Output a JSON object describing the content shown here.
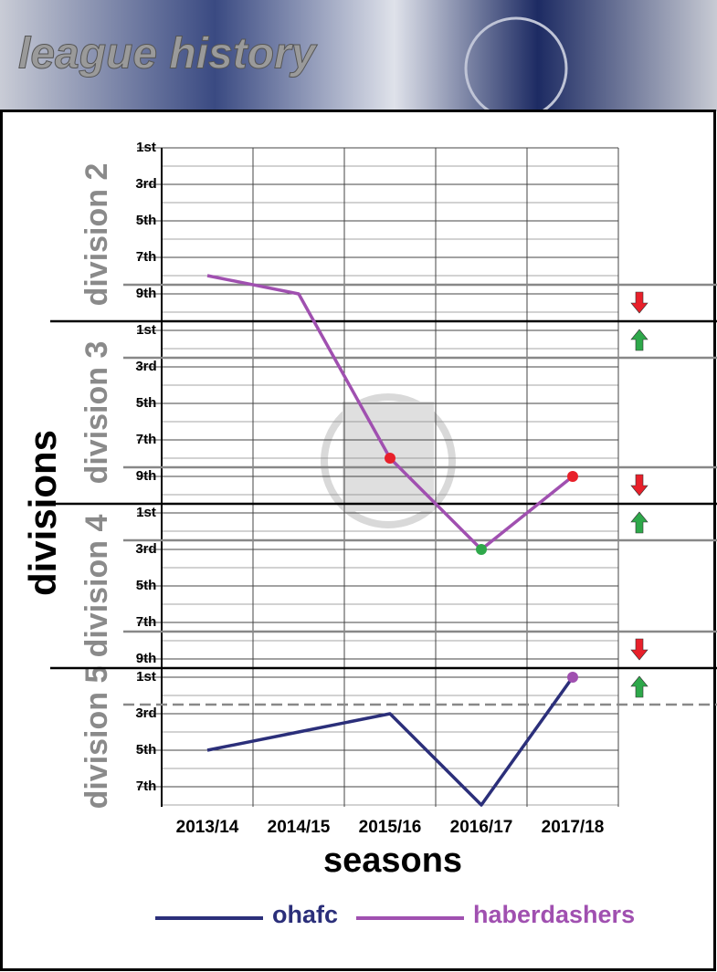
{
  "chart_data": {
    "type": "line",
    "title": "league history",
    "x_label": "seasons",
    "y_label": "divisions",
    "categories": [
      "2013/14",
      "2014/15",
      "2015/16",
      "2016/17",
      "2017/18"
    ],
    "series": [
      {
        "name": "ohafc",
        "color": "#2b2f7a",
        "values": [
          34,
          33,
          32,
          37,
          30
        ],
        "marker_colors": [
          null,
          null,
          null,
          null,
          "#a050b0"
        ]
      },
      {
        "name": "haberdashers",
        "color": "#a050b0",
        "values": [
          8,
          9,
          18,
          23,
          19
        ],
        "marker_colors": [
          null,
          null,
          "#e8202a",
          "#2ea84a",
          "#e8202a"
        ]
      }
    ],
    "ylim": [
      1,
      37.1
    ],
    "y_inverted": true,
    "yticks": [
      {
        "value": 1,
        "label": "1st"
      },
      {
        "value": 3,
        "label": "3rd"
      },
      {
        "value": 5,
        "label": "5th"
      },
      {
        "value": 7,
        "label": "7th"
      },
      {
        "value": 9,
        "label": "9th"
      },
      {
        "value": 11,
        "label": "1st"
      },
      {
        "value": 13,
        "label": "3rd"
      },
      {
        "value": 15,
        "label": "5th"
      },
      {
        "value": 17,
        "label": "7th"
      },
      {
        "value": 19,
        "label": "9th"
      },
      {
        "value": 21,
        "label": "1st"
      },
      {
        "value": 23,
        "label": "3rd"
      },
      {
        "value": 25,
        "label": "5th"
      },
      {
        "value": 27,
        "label": "7th"
      },
      {
        "value": 29,
        "label": "9th"
      },
      {
        "value": 30,
        "label": "1st"
      },
      {
        "value": 32,
        "label": "3rd"
      },
      {
        "value": 34,
        "label": "5th"
      },
      {
        "value": 36,
        "label": "7th"
      }
    ],
    "grid": true,
    "divisions": [
      {
        "label": "division 2",
        "start": 1,
        "end": 10.5
      },
      {
        "label": "division 3",
        "start": 10.5,
        "end": 20.5
      },
      {
        "label": "division 4",
        "start": 20.5,
        "end": 29.5
      },
      {
        "label": "division 5",
        "start": 29.5,
        "end": 37.1
      }
    ],
    "relegation_lines": [
      8.5,
      18.5,
      27.5
    ],
    "promotion_lines": [
      12.5,
      22.5,
      31.5
    ],
    "legend": "bottom"
  }
}
